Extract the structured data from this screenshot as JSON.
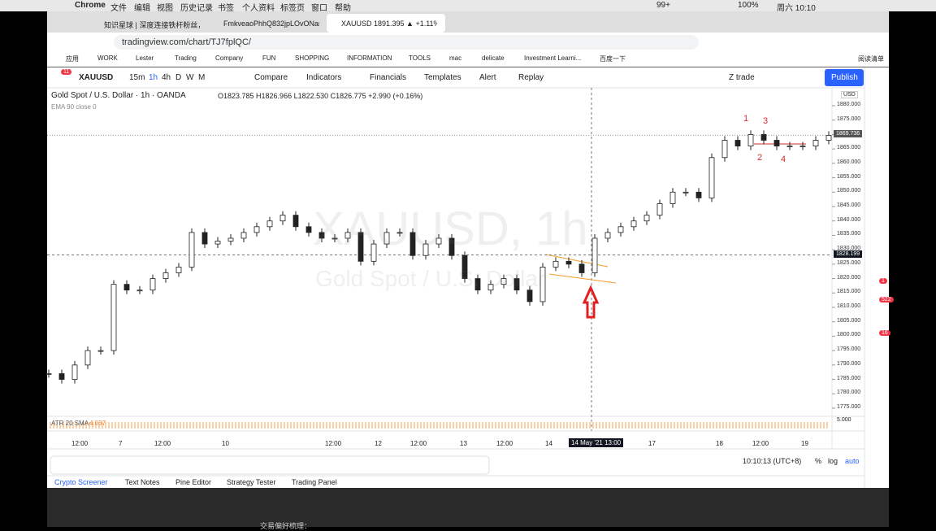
{
  "menubar": {
    "items": [
      "Chrome",
      "文件",
      "编辑",
      "视图",
      "历史记录",
      "书签",
      "个人资料",
      "标签页",
      "窗口",
      "帮助"
    ],
    "badge": "99+",
    "battery": "100%",
    "clock": "周六 10:10"
  },
  "tabs": [
    "知识星球 | 深度连接铁杆粉丝，...",
    "FmkveaoPhhQ832jpLOvONam...",
    "XAUUSD 1891.395 ▲ +1.11% Z..."
  ],
  "url": "tradingview.com/chart/TJ7fplQC/",
  "bookmarks": [
    "应用",
    "WORK",
    "Lester",
    "Trading",
    "Company",
    "FUN",
    "SHOPPING",
    "INFORMATION",
    "TOOLS",
    "mac",
    "delicate",
    "Investment Learni...",
    "百度一下"
  ],
  "reading_list": "阅读清单",
  "toolbar": {
    "badge": "11",
    "symbol": "XAUUSD",
    "intervals": [
      "15m",
      "1h",
      "4h",
      "D",
      "W",
      "M"
    ],
    "buttons": [
      "Compare",
      "Indicators",
      "Financials",
      "Templates",
      "Alert",
      "Replay"
    ],
    "layout": "Z trade",
    "publish": "Publish"
  },
  "legend": {
    "title": "Gold Spot / U.S. Dollar · 1h · OANDA",
    "ohlc": "O1823.785 H1826.966 L1822.530 C1826.775 +2.990 (+0.16%)",
    "ema": "EMA 90 close 0"
  },
  "watermark": [
    "XAUUSD, 1h",
    "Gold Spot / U.S. Dollar"
  ],
  "price_chart": {
    "currency": "USD",
    "ylim": [
      1775,
      1880
    ],
    "yticks": [
      {
        "value": 1775,
        "label": "1775.000"
      },
      {
        "value": 1780,
        "label": "1780.000"
      },
      {
        "value": 1785,
        "label": "1785.000"
      },
      {
        "value": 1790,
        "label": "1790.000"
      },
      {
        "value": 1795,
        "label": "1795.000"
      },
      {
        "value": 1800,
        "label": "1800.000"
      },
      {
        "value": 1805,
        "label": "1805.000"
      },
      {
        "value": 1810,
        "label": "1810.000"
      },
      {
        "value": 1815,
        "label": "1815.000"
      },
      {
        "value": 1820,
        "label": "1820.000"
      },
      {
        "value": 1825,
        "label": "1825.000"
      },
      {
        "value": 1830,
        "label": "1830.000"
      },
      {
        "value": 1835,
        "label": "1835.000"
      },
      {
        "value": 1840,
        "label": "1840.000"
      },
      {
        "value": 1845,
        "label": "1845.000"
      },
      {
        "value": 1850,
        "label": "1850.000"
      },
      {
        "value": 1855,
        "label": "1855.000"
      },
      {
        "value": 1860,
        "label": "1860.000"
      },
      {
        "value": 1865,
        "label": "1865.000"
      },
      {
        "value": 1870,
        "label": "1870.000"
      },
      {
        "value": 1875,
        "label": "1875.000"
      },
      {
        "value": 1880,
        "label": "1880.000"
      }
    ],
    "last_price": {
      "value": 1869.736,
      "label": "1869.736"
    },
    "crosshair_price": {
      "value": 1828.199,
      "label": "1828.199"
    },
    "closes": [
      1787,
      1785,
      1790,
      1795,
      1795,
      1818,
      1816,
      1816,
      1820,
      1822,
      1824,
      1836,
      1832,
      1833,
      1834,
      1836,
      1838,
      1840,
      1842,
      1838,
      1836,
      1834,
      1834,
      1836,
      1826,
      1832,
      1836,
      1836,
      1828,
      1832,
      1834,
      1828,
      1820,
      1816,
      1818,
      1820,
      1816,
      1812,
      1824,
      1826,
      1825,
      1822,
      1834,
      1836,
      1838,
      1840,
      1842,
      1846,
      1850,
      1850,
      1848,
      1862,
      1868,
      1866,
      1870,
      1868,
      1866,
      1866,
      1866,
      1868,
      1869.7
    ],
    "annotations": [
      "1",
      "2",
      "3",
      "4"
    ]
  },
  "atr": {
    "label": "ATR 20 SMA",
    "value": "4.037",
    "axis": "5.000"
  },
  "time_axis": [
    "12:00",
    "7",
    "12:00",
    "10",
    "12:00",
    "12",
    "12:00",
    "13",
    "12:00",
    "14",
    "14 May '21  13:00",
    "17",
    "18",
    "12:00",
    "19"
  ],
  "status": {
    "clock": "10:10:13 (UTC+8)",
    "percent": "%",
    "log": "log",
    "auto": "auto"
  },
  "bottom_tabs": [
    "Crypto Screener",
    "Text Notes",
    "Pine Editor",
    "Strategy Tester",
    "Trading Panel"
  ],
  "sidebar_badges": [
    "1",
    "522",
    "16"
  ],
  "footer_text": "交易偏好梳理："
}
